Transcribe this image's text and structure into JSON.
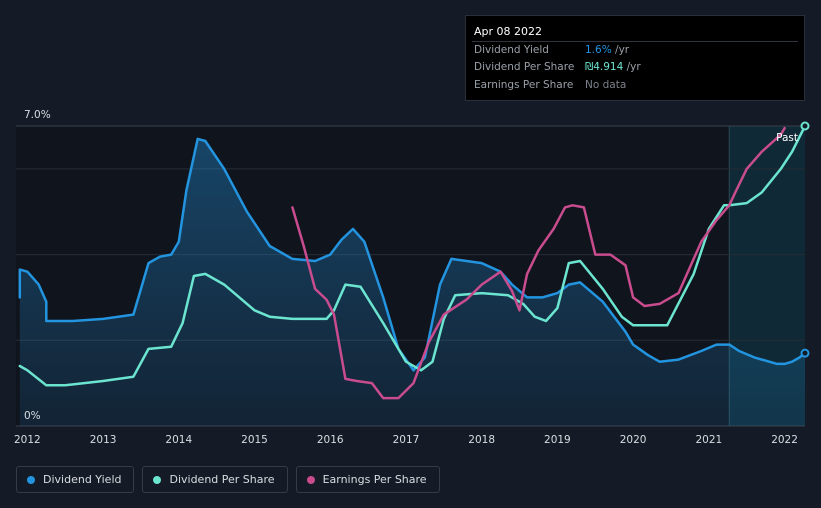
{
  "tooltip": {
    "date": "Apr 08 2022",
    "rows": [
      {
        "label": "Dividend Yield",
        "value": "1.6%",
        "unit": " /yr",
        "color": "#2394df"
      },
      {
        "label": "Dividend Per Share",
        "value": "₪4.914",
        "unit": " /yr",
        "color": "#6ce5d0"
      },
      {
        "label": "Earnings Per Share",
        "value": "No data",
        "unit": "",
        "color": "#7c818a"
      }
    ]
  },
  "legend": [
    {
      "label": "Dividend Yield",
      "color": "#2394df"
    },
    {
      "label": "Dividend Per Share",
      "color": "#6ce5d0"
    },
    {
      "label": "Earnings Per Share",
      "color": "#c84c8e"
    }
  ],
  "chart_data": {
    "type": "line",
    "ylim": [
      0,
      7.0
    ],
    "y_ticks": [
      "0%",
      "7.0%"
    ],
    "xlim": [
      2011.85,
      2022.27
    ],
    "x_ticks": [
      "2012",
      "2013",
      "2014",
      "2015",
      "2016",
      "2017",
      "2018",
      "2019",
      "2020",
      "2021",
      "2022"
    ],
    "past_label": "Past",
    "past_start": 2021.27,
    "grid": true,
    "series": [
      {
        "name": "Dividend Yield",
        "color": "#2394df",
        "area": true,
        "x": [
          2011.9,
          2011.9,
          2012.0,
          2012.15,
          2012.25,
          2012.25,
          2012.6,
          2013.0,
          2013.4,
          2013.6,
          2013.75,
          2013.9,
          2014.0,
          2014.1,
          2014.25,
          2014.35,
          2014.6,
          2014.9,
          2015.2,
          2015.5,
          2015.8,
          2016.0,
          2016.15,
          2016.3,
          2016.45,
          2016.7,
          2016.9,
          2017.1,
          2017.25,
          2017.45,
          2017.6,
          2017.8,
          2018.0,
          2018.25,
          2018.4,
          2018.6,
          2018.8,
          2019.0,
          2019.15,
          2019.3,
          2019.6,
          2019.9,
          2020.0,
          2020.2,
          2020.35,
          2020.6,
          2020.9,
          2021.1,
          2021.27,
          2021.4,
          2021.6,
          2021.9,
          2022.0,
          2022.1,
          2022.2,
          2022.27
        ],
        "y": [
          3.0,
          3.65,
          3.6,
          3.3,
          2.9,
          2.45,
          2.45,
          2.5,
          2.6,
          3.8,
          3.95,
          4.0,
          4.3,
          5.5,
          6.7,
          6.65,
          6.0,
          5.0,
          4.2,
          3.9,
          3.85,
          4.0,
          4.35,
          4.6,
          4.3,
          3.0,
          1.8,
          1.3,
          1.6,
          3.3,
          3.9,
          3.85,
          3.8,
          3.6,
          3.3,
          3.0,
          3.0,
          3.1,
          3.3,
          3.35,
          2.9,
          2.2,
          1.9,
          1.65,
          1.5,
          1.55,
          1.75,
          1.9,
          1.9,
          1.75,
          1.6,
          1.45,
          1.45,
          1.5,
          1.6,
          1.7
        ]
      },
      {
        "name": "Dividend Per Share",
        "color": "#6ce5d0",
        "area": false,
        "x": [
          2011.9,
          2012.0,
          2012.25,
          2012.5,
          2013.0,
          2013.4,
          2013.6,
          2013.9,
          2014.05,
          2014.2,
          2014.35,
          2014.6,
          2015.0,
          2015.2,
          2015.5,
          2015.95,
          2016.05,
          2016.2,
          2016.4,
          2016.7,
          2017.0,
          2017.2,
          2017.35,
          2017.5,
          2017.65,
          2018.0,
          2018.35,
          2018.55,
          2018.7,
          2018.85,
          2019.0,
          2019.15,
          2019.3,
          2019.6,
          2019.85,
          2020.0,
          2020.2,
          2020.45,
          2020.8,
          2021.0,
          2021.2,
          2021.27,
          2021.5,
          2021.7,
          2021.95,
          2022.1,
          2022.27
        ],
        "y": [
          1.4,
          1.3,
          0.95,
          0.95,
          1.05,
          1.15,
          1.8,
          1.85,
          2.4,
          3.5,
          3.55,
          3.3,
          2.7,
          2.55,
          2.5,
          2.5,
          2.7,
          3.3,
          3.25,
          2.4,
          1.5,
          1.3,
          1.5,
          2.5,
          3.05,
          3.1,
          3.05,
          2.85,
          2.55,
          2.45,
          2.75,
          3.8,
          3.85,
          3.2,
          2.55,
          2.35,
          2.35,
          2.35,
          3.55,
          4.6,
          5.15,
          5.15,
          5.2,
          5.45,
          6.0,
          6.4,
          7.0
        ]
      },
      {
        "name": "Earnings Per Share",
        "color": "#c84c8e",
        "area": false,
        "x": [
          2015.5,
          2015.65,
          2015.8,
          2015.95,
          2016.05,
          2016.2,
          2016.35,
          2016.55,
          2016.7,
          2016.9,
          2017.1,
          2017.3,
          2017.5,
          2017.8,
          2018.0,
          2018.25,
          2018.4,
          2018.5,
          2018.6,
          2018.75,
          2018.95,
          2019.1,
          2019.2,
          2019.35,
          2019.5,
          2019.7,
          2019.9,
          2020.0,
          2020.15,
          2020.35,
          2020.6,
          2020.9,
          2021.1,
          2021.27,
          2021.35,
          2021.5,
          2021.7,
          2021.95,
          2022.0
        ],
        "y": [
          5.1,
          4.2,
          3.2,
          2.95,
          2.6,
          1.1,
          1.05,
          1.0,
          0.65,
          0.65,
          1.0,
          1.95,
          2.6,
          2.95,
          3.3,
          3.6,
          3.15,
          2.7,
          3.55,
          4.1,
          4.6,
          5.1,
          5.15,
          5.1,
          4.0,
          4.0,
          3.75,
          3.0,
          2.8,
          2.85,
          3.1,
          4.3,
          4.8,
          5.15,
          5.45,
          6.0,
          6.4,
          6.8,
          6.95
        ]
      }
    ]
  }
}
